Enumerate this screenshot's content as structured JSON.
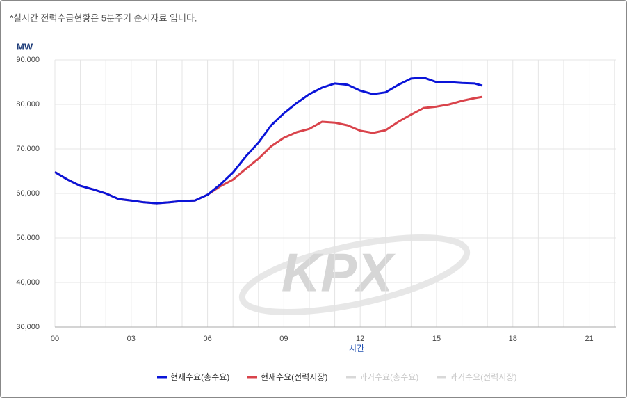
{
  "chart_data": {
    "type": "line",
    "note": "*실시간 전력수급현황은 5분주기 순시자료 입니다.",
    "y_unit": "MW",
    "x_label": "시간",
    "watermark": "KPX",
    "x": [
      0,
      0.5,
      1,
      1.5,
      2,
      2.5,
      3,
      3.5,
      4,
      4.5,
      5,
      5.5,
      6,
      6.5,
      7,
      7.5,
      8,
      8.5,
      9,
      9.5,
      10,
      10.5,
      11,
      11.5,
      12,
      12.5,
      13,
      13.5,
      14,
      14.5,
      15,
      15.5,
      16,
      16.5,
      16.8
    ],
    "series": [
      {
        "name": "현재수요(총수요)",
        "color": "#0a14d8",
        "values": [
          64800,
          63100,
          61700,
          60900,
          60000,
          58750,
          58400,
          58000,
          57800,
          58000,
          58300,
          58400,
          59700,
          62000,
          64700,
          68300,
          71400,
          75300,
          78000,
          80300,
          82300,
          83750,
          84700,
          84400,
          83100,
          82300,
          82700,
          84400,
          85800,
          86000,
          85000,
          85000,
          84800,
          84700,
          84200
        ]
      },
      {
        "name": "현재수요(전력시장)",
        "color": "#d9434b",
        "values": [
          64800,
          63100,
          61700,
          60900,
          60000,
          58750,
          58400,
          58000,
          57800,
          58000,
          58300,
          58400,
          59700,
          61600,
          63100,
          65500,
          67800,
          70600,
          72500,
          73750,
          74500,
          76100,
          75900,
          75300,
          74100,
          73600,
          74200,
          76100,
          77700,
          79200,
          79500,
          80000,
          80800,
          81400,
          81700
        ]
      },
      {
        "name": "과거수요(총수요)",
        "color": "#d8d8d8",
        "values": [
          null,
          null,
          null,
          null,
          null,
          null,
          null,
          null,
          null,
          null,
          null,
          null,
          null,
          null,
          null,
          null,
          null,
          null,
          null,
          null,
          null,
          null,
          null,
          null,
          null,
          null,
          null,
          null,
          null,
          null,
          null,
          null,
          null,
          null,
          null
        ]
      },
      {
        "name": "과거수요(전력시장)",
        "color": "#d8d8d8",
        "values": [
          null,
          null,
          null,
          null,
          null,
          null,
          null,
          null,
          null,
          null,
          null,
          null,
          null,
          null,
          null,
          null,
          null,
          null,
          null,
          null,
          null,
          null,
          null,
          null,
          null,
          null,
          null,
          null,
          null,
          null,
          null,
          null,
          null,
          null,
          null
        ]
      }
    ],
    "xlim": [
      0,
      22.05
    ],
    "xticks": [
      {
        "value": 0,
        "label": "00"
      },
      {
        "value": 3,
        "label": "03"
      },
      {
        "value": 6,
        "label": "06"
      },
      {
        "value": 9,
        "label": "09"
      },
      {
        "value": 12,
        "label": "12"
      },
      {
        "value": 15,
        "label": "15"
      },
      {
        "value": 18,
        "label": "18"
      },
      {
        "value": 21,
        "label": "21"
      }
    ],
    "xminorticks": [
      1,
      2,
      4,
      5,
      7,
      8,
      10,
      11,
      13,
      14,
      16,
      17,
      19,
      20,
      22
    ],
    "ylim": [
      30000,
      90000
    ],
    "yticks": [
      {
        "value": 30000,
        "label": "30,000"
      },
      {
        "value": 40000,
        "label": "40,000"
      },
      {
        "value": 50000,
        "label": "50,000"
      },
      {
        "value": 60000,
        "label": "60,000"
      },
      {
        "value": 70000,
        "label": "70,000"
      },
      {
        "value": 80000,
        "label": "80,000"
      },
      {
        "value": 90000,
        "label": "90,000"
      }
    ],
    "grid": true
  }
}
